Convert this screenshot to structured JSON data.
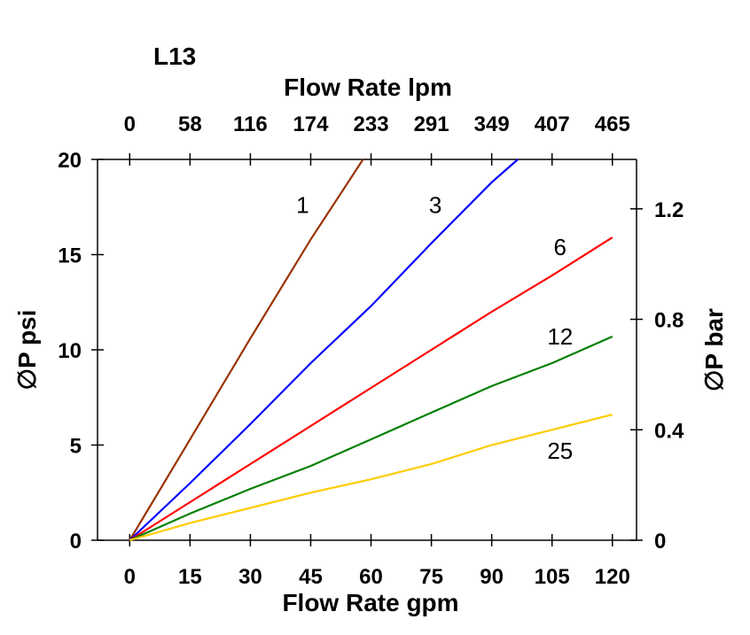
{
  "chart_data": {
    "type": "line",
    "title": "L13",
    "xlabel": "Flow Rate gpm",
    "x2label": "Flow Rate lpm",
    "ylabel": "∅P psi",
    "y2label": "∅P bar",
    "xlim": [
      -8,
      126
    ],
    "ylim": [
      0,
      20
    ],
    "x_ticks": [
      0,
      15,
      30,
      45,
      60,
      75,
      90,
      105,
      120
    ],
    "x_tick_labels": [
      "0",
      "15",
      "30",
      "45",
      "60",
      "75",
      "90",
      "105",
      "120"
    ],
    "x2_tick_labels": [
      "0",
      "58",
      "116",
      "174",
      "233",
      "291",
      "349",
      "407",
      "465"
    ],
    "y_ticks": [
      0,
      5,
      10,
      15,
      20
    ],
    "y_tick_labels": [
      "0",
      "5",
      "10",
      "15",
      "20"
    ],
    "y2_ticks": [
      0,
      0.4,
      0.8,
      1.2
    ],
    "y2_tick_labels": [
      "0",
      "0.4",
      "0.8",
      "1.2"
    ],
    "psi_per_bar": 14.5038,
    "series": [
      {
        "name": "1",
        "color": "#993300",
        "x": [
          0,
          15,
          30,
          45,
          58
        ],
        "y": [
          0,
          5.3,
          10.6,
          15.8,
          20
        ]
      },
      {
        "name": "3",
        "color": "#0000ff",
        "x": [
          0,
          15,
          30,
          45,
          60,
          75,
          90,
          96.5
        ],
        "y": [
          0,
          3.0,
          6.1,
          9.3,
          12.3,
          15.6,
          18.8,
          20
        ]
      },
      {
        "name": "6",
        "color": "#ff0000",
        "x": [
          0,
          15,
          30,
          45,
          60,
          75,
          90,
          105,
          120
        ],
        "y": [
          0,
          2.0,
          4.0,
          6.0,
          8.0,
          10.0,
          12.0,
          13.9,
          15.9
        ]
      },
      {
        "name": "12",
        "color": "#008000",
        "x": [
          0,
          15,
          30,
          45,
          60,
          75,
          90,
          105,
          120
        ],
        "y": [
          0,
          1.4,
          2.7,
          3.9,
          5.3,
          6.7,
          8.1,
          9.3,
          10.7
        ]
      },
      {
        "name": "25",
        "color": "#ffcc00",
        "x": [
          0,
          15,
          30,
          45,
          60,
          75,
          90,
          105,
          120
        ],
        "y": [
          0,
          0.9,
          1.7,
          2.5,
          3.2,
          4.0,
          5.0,
          5.8,
          6.6
        ]
      }
    ],
    "series_label_positions": [
      {
        "name": "1",
        "x": 43,
        "y": 17.6
      },
      {
        "name": "3",
        "x": 76,
        "y": 17.6
      },
      {
        "name": "6",
        "x": 107,
        "y": 15.4
      },
      {
        "name": "12",
        "x": 107,
        "y": 10.7
      },
      {
        "name": "25",
        "x": 107,
        "y": 4.7
      }
    ]
  }
}
